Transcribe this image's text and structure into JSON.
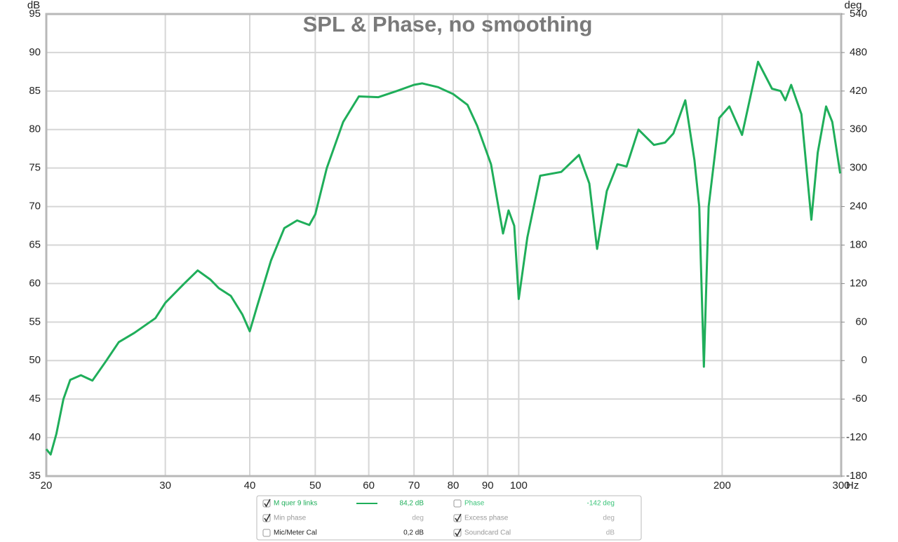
{
  "chart_data": {
    "type": "line",
    "title": "SPL & Phase, no smoothing",
    "y_unit": "dB",
    "y2_unit": "deg",
    "x_unit": "Hz",
    "xscale": "log",
    "xlim": [
      20,
      300
    ],
    "xticks": [
      20,
      30,
      40,
      50,
      60,
      70,
      80,
      90,
      100,
      200,
      300
    ],
    "ylim": [
      35,
      95
    ],
    "yticks": [
      35,
      40,
      45,
      50,
      55,
      60,
      65,
      70,
      75,
      80,
      85,
      90,
      95
    ],
    "y2lim": [
      -180,
      540
    ],
    "y2ticks": [
      -180,
      -120,
      -60,
      0,
      60,
      120,
      180,
      240,
      300,
      360,
      420,
      480,
      540
    ],
    "grid": true,
    "series": [
      {
        "name": "M quer 9 links",
        "color": "#1fae5a",
        "x": [
          20,
          20.3,
          20.7,
          21.2,
          21.7,
          22.5,
          23.4,
          24.5,
          25.6,
          27,
          29,
          30,
          32,
          33.5,
          35,
          36,
          37.5,
          39,
          40,
          41,
          43,
          45,
          47,
          49,
          50,
          52,
          55,
          58,
          62,
          66,
          70,
          72,
          76,
          80,
          84,
          86.8,
          91,
          94.8,
          96.6,
          98.5,
          100,
          103,
          107.6,
          115.6,
          122.8,
          127.2,
          130.6,
          135,
          140,
          144.4,
          150.4,
          158.5,
          164.6,
          169.4,
          176.4,
          182,
          185,
          187.9,
          191,
          198,
          205,
          214,
          226,
          237,
          244,
          248,
          253,
          262,
          271,
          277,
          285,
          291,
          299
        ],
        "values": [
          38.5,
          37.8,
          40.5,
          45,
          47.5,
          48.1,
          47.4,
          49.9,
          52.4,
          53.6,
          55.5,
          57.5,
          60,
          61.7,
          60.5,
          59.4,
          58.4,
          56,
          53.8,
          57,
          63,
          67.2,
          68.2,
          67.6,
          69,
          75,
          81,
          84.3,
          84.2,
          85,
          85.8,
          86,
          85.5,
          84.6,
          83.2,
          80.5,
          75.5,
          66.5,
          69.5,
          67.5,
          58,
          66,
          74,
          74.5,
          76.7,
          73,
          64.5,
          72,
          75.5,
          75.2,
          80,
          78,
          78.3,
          79.5,
          83.8,
          76,
          70,
          49.2,
          70,
          81.5,
          83,
          79.3,
          88.8,
          85.3,
          85,
          83.8,
          85.8,
          82,
          68.3,
          77,
          83,
          81,
          74.3
        ]
      }
    ],
    "legend_items": [
      {
        "label": "M quer 9 links",
        "checked": true,
        "value": "84,2 dB",
        "color": "#1fae5a",
        "value_color": "#1fae5a",
        "swatch": true
      },
      {
        "label": "Phase",
        "checked": false,
        "value": "-142 deg",
        "color": "#3cc47a",
        "value_color": "#3cc47a",
        "swatch": false
      },
      {
        "label": "Min phase",
        "checked": true,
        "value": "deg",
        "color": "#999999",
        "value_color": "#aaaaaa",
        "swatch": false
      },
      {
        "label": "Excess phase",
        "checked": true,
        "value": "deg",
        "color": "#999999",
        "value_color": "#aaaaaa",
        "swatch": false
      },
      {
        "label": "Mic/Meter Cal",
        "checked": false,
        "value": "0,2 dB",
        "color": "#222222",
        "value_color": "#222222",
        "swatch": false
      },
      {
        "label": "Soundcard Cal",
        "checked": true,
        "value": "dB",
        "color": "#999999",
        "value_color": "#aaaaaa",
        "swatch": false
      }
    ]
  }
}
